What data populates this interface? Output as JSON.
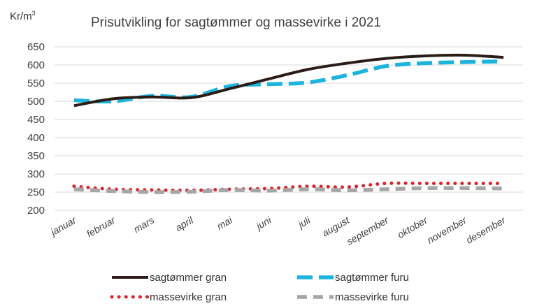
{
  "chart_data": {
    "type": "line",
    "title": "Prisutvikling for sagtømmer og massevirke i 2021",
    "y_unit_prefix": "Kr/m",
    "y_unit_sup": "3",
    "categories": [
      "januar",
      "februar",
      "mars",
      "april",
      "mai",
      "juni",
      "juli",
      "august",
      "september",
      "oktober",
      "november",
      "desember"
    ],
    "ylim": [
      200,
      650
    ],
    "yticks": [
      650,
      600,
      550,
      500,
      450,
      400,
      350,
      300,
      250,
      200
    ],
    "grid": true,
    "legend_position": "bottom",
    "series": [
      {
        "name": "sagtømmer gran",
        "color": "#2b1d16",
        "style": "solid",
        "values": [
          488,
          507,
          512,
          510,
          535,
          562,
          588,
          605,
          618,
          625,
          627,
          621
        ]
      },
      {
        "name": "sagtømmer furu",
        "color": "#1cb3dc",
        "style": "dash",
        "values": [
          503,
          500,
          515,
          512,
          542,
          547,
          552,
          572,
          597,
          605,
          608,
          610
        ]
      },
      {
        "name": "massevirke gran",
        "color": "#d9262e",
        "style": "dot",
        "values": [
          266,
          258,
          256,
          255,
          258,
          260,
          266,
          264,
          274,
          274,
          274,
          274
        ]
      },
      {
        "name": "massevirke furu",
        "color": "#a6a6a6",
        "style": "dash",
        "values": [
          258,
          253,
          250,
          251,
          256,
          254,
          258,
          255,
          258,
          261,
          261,
          260
        ]
      }
    ]
  }
}
